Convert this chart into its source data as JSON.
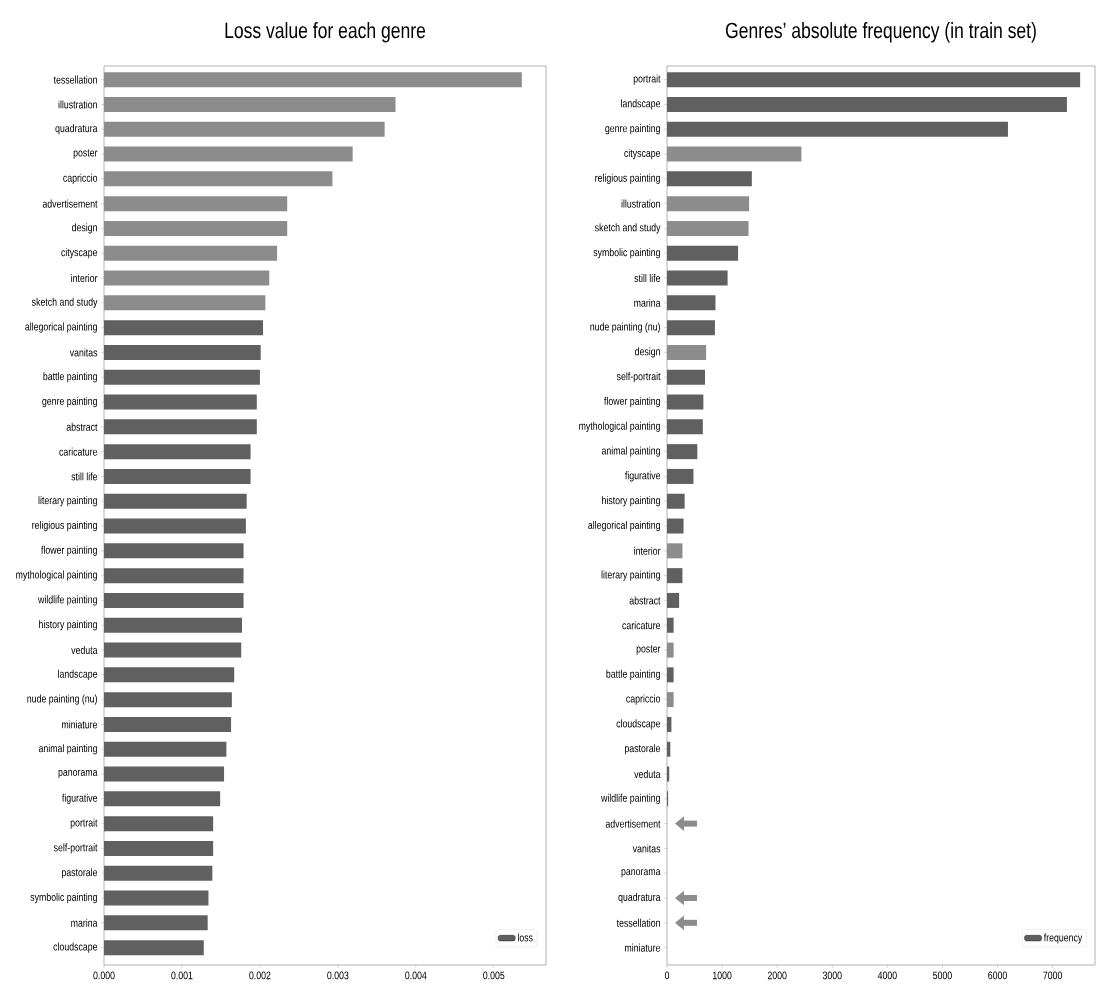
{
  "chart_data": [
    {
      "type": "bar",
      "orientation": "horizontal",
      "title": "Loss value for each genre",
      "legend": "bottom right",
      "categories": [
        "tessellation",
        "illustration",
        "quadratura",
        "poster",
        "capriccio",
        "advertisement",
        "design",
        "cityscape",
        "interior",
        "sketch and study",
        "allegorical painting",
        "vanitas",
        "battle painting",
        "genre painting",
        "abstract",
        "caricature",
        "still life",
        "literary painting",
        "religious painting",
        "flower painting",
        "mythological painting",
        "wildlife painting",
        "history painting",
        "veduta",
        "landscape",
        "nude painting (nu)",
        "miniature",
        "animal painting",
        "panorama",
        "figurative",
        "portrait",
        "self-portrait",
        "pastorale",
        "symbolic painting",
        "marina",
        "cloudscape"
      ],
      "series": [
        {
          "name": "loss",
          "color": "#606060",
          "colors": [
            "#8c8c8c",
            "#8c8c8c",
            "#8c8c8c",
            "#8c8c8c",
            "#8c8c8c",
            "#8c8c8c",
            "#8c8c8c",
            "#8c8c8c",
            "#8c8c8c",
            "#8c8c8c",
            "#606060",
            "#606060",
            "#606060",
            "#606060",
            "#606060",
            "#606060",
            "#606060",
            "#606060",
            "#606060",
            "#606060",
            "#606060",
            "#606060",
            "#606060",
            "#606060",
            "#606060",
            "#606060",
            "#606060",
            "#606060",
            "#606060",
            "#606060",
            "#606060",
            "#606060",
            "#606060",
            "#606060",
            "#606060",
            "#606060"
          ],
          "values": [
            0.00536,
            0.00374,
            0.0036,
            0.00319,
            0.00293,
            0.00235,
            0.00235,
            0.00222,
            0.00212,
            0.00207,
            0.00204,
            0.00201,
            0.002,
            0.00196,
            0.00196,
            0.00188,
            0.00188,
            0.00183,
            0.00182,
            0.00179,
            0.00179,
            0.00179,
            0.00177,
            0.00176,
            0.00167,
            0.00164,
            0.00163,
            0.00157,
            0.00154,
            0.00149,
            0.0014,
            0.0014,
            0.00139,
            0.00134,
            0.00133,
            0.00128
          ]
        }
      ],
      "xlim": [
        0,
        0.00567
      ],
      "xticks": [
        {
          "value": 0,
          "label": "0.000"
        },
        {
          "value": 0.001,
          "label": "0.001"
        },
        {
          "value": 0.002,
          "label": "0.002"
        },
        {
          "value": 0.003,
          "label": "0.003"
        },
        {
          "value": 0.004,
          "label": "0.004"
        },
        {
          "value": 0.005,
          "label": "0.005"
        }
      ]
    },
    {
      "type": "bar",
      "orientation": "horizontal",
      "title": "Genres’ absolute frequency (in train set)",
      "legend": "bottom right",
      "categories": [
        "portrait",
        "landscape",
        "genre painting",
        "cityscape",
        "religious painting",
        "illustration",
        "sketch and study",
        "symbolic painting",
        "still life",
        "marina",
        "nude painting (nu)",
        "design",
        "self-portrait",
        "flower painting",
        "mythological painting",
        "animal painting",
        "figurative",
        "history painting",
        "allegorical painting",
        "interior",
        "literary painting",
        "abstract",
        "caricature",
        "poster",
        "battle painting",
        "capriccio",
        "cloudscape",
        "pastorale",
        "veduta",
        "wildlife painting",
        "advertisement",
        "vanitas",
        "panorama",
        "quadratura",
        "tessellation",
        "miniature"
      ],
      "series": [
        {
          "name": "frequency",
          "color": "#606060",
          "colors": [
            "#606060",
            "#606060",
            "#606060",
            "#8c8c8c",
            "#606060",
            "#8c8c8c",
            "#8c8c8c",
            "#606060",
            "#606060",
            "#606060",
            "#606060",
            "#8c8c8c",
            "#606060",
            "#606060",
            "#606060",
            "#606060",
            "#606060",
            "#606060",
            "#606060",
            "#8c8c8c",
            "#606060",
            "#606060",
            "#606060",
            "#8c8c8c",
            "#606060",
            "#8c8c8c",
            "#606060",
            "#606060",
            "#606060",
            "#606060",
            "#8c8c8c",
            "#606060",
            "#606060",
            "#8c8c8c",
            "#8c8c8c",
            "#606060"
          ],
          "values": [
            7500,
            7260,
            6190,
            2440,
            1540,
            1490,
            1480,
            1290,
            1100,
            880,
            870,
            710,
            690,
            660,
            650,
            550,
            480,
            320,
            300,
            280,
            280,
            220,
            120,
            120,
            120,
            120,
            80,
            60,
            40,
            20,
            0,
            0,
            0,
            0,
            0,
            0
          ]
        }
      ],
      "xlim": [
        0,
        7770
      ],
      "xticks": [
        0,
        1000,
        2000,
        3000,
        4000,
        5000,
        6000,
        7000
      ]
    }
  ]
}
